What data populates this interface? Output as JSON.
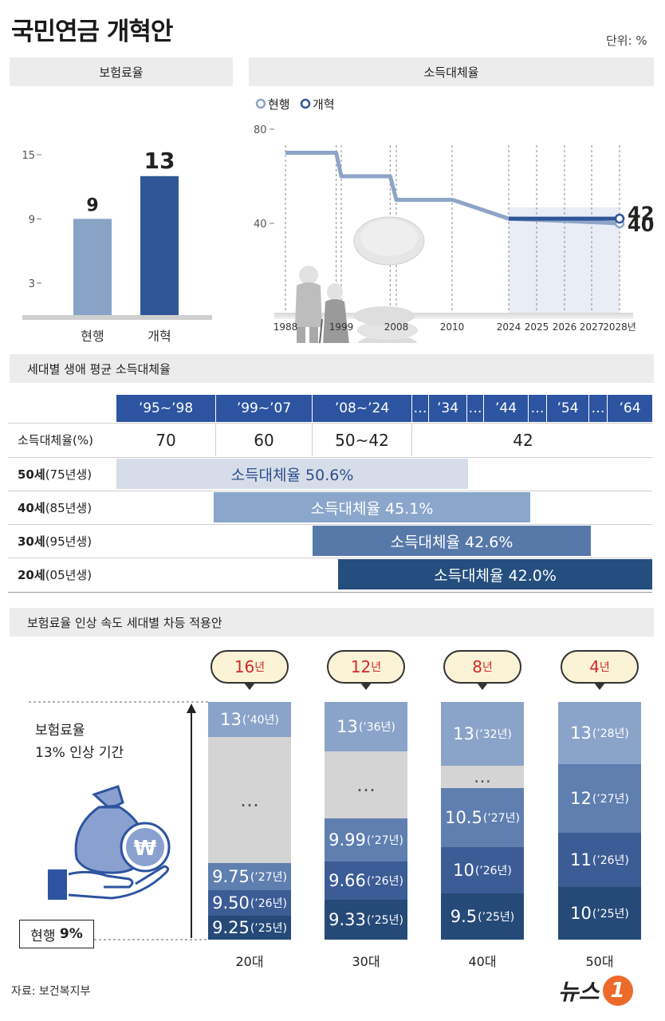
{
  "header": {
    "title": "국민연금 개혁안",
    "unit": "단위: %"
  },
  "sections": {
    "premium": "보험료율",
    "replacement": "소득대체율",
    "generation": "세대별 생애 평균 소득대체율",
    "differential": "보험료율 인상 속도 세대별 차등 적용안"
  },
  "chart_data": [
    {
      "type": "bar",
      "title": "보험료율",
      "categories": [
        "현행",
        "개혁"
      ],
      "values": [
        9,
        13
      ],
      "yticks": [
        3,
        9,
        15
      ],
      "colors": [
        "#89a3c6",
        "#2f5798"
      ]
    },
    {
      "type": "line",
      "title": "소득대체율",
      "legend": [
        "현행",
        "개혁"
      ],
      "x_labels": [
        "1988",
        "1999",
        "2008",
        "2010",
        "2024",
        "2025",
        "2026",
        "2027",
        "2028년"
      ],
      "yticks": [
        40,
        80
      ],
      "series": [
        {
          "name": "현행",
          "points": [
            [
              1988,
              70
            ],
            [
              1998,
              70
            ],
            [
              1999,
              60
            ],
            [
              2007,
              60
            ],
            [
              2008,
              50
            ],
            [
              2009,
              50
            ],
            [
              2010,
              50
            ],
            [
              2011,
              49.5
            ],
            [
              2024,
              42
            ],
            [
              2025,
              41.5
            ],
            [
              2026,
              41
            ],
            [
              2027,
              40.5
            ],
            [
              2028,
              40
            ]
          ],
          "end_label": "40"
        },
        {
          "name": "개혁",
          "points": [
            [
              2024,
              42
            ],
            [
              2025,
              42
            ],
            [
              2026,
              42
            ],
            [
              2027,
              42
            ],
            [
              2028,
              42
            ]
          ],
          "end_label": "42"
        }
      ]
    },
    {
      "type": "table",
      "title": "세대별 생애 평균 소득대체율",
      "periods": [
        "’95~’98",
        "’99~’07",
        "’08~’24",
        "…",
        "’34",
        "…",
        "’44",
        "…",
        "’54",
        "…",
        "’64"
      ],
      "row_label": "소득대체율(%)",
      "rates": [
        "70",
        "60",
        "50~42",
        "42"
      ],
      "generations": [
        {
          "label": "50세",
          "sub": "(75년생)",
          "bar": "소득대체율 50.6%"
        },
        {
          "label": "40세",
          "sub": "(85년생)",
          "bar": "소득대체율  45.1%"
        },
        {
          "label": "30세",
          "sub": "(95년생)",
          "bar": "소득대체율  42.6%"
        },
        {
          "label": "20세",
          "sub": "(05년생)",
          "bar": "소득대체율 42.0%"
        }
      ]
    },
    {
      "type": "bar",
      "title": "보험료율 인상 속도 세대별 차등 적용안",
      "axis_note": [
        "보험료율",
        "13% 인상 기간"
      ],
      "baseline": {
        "label": "현행",
        "value": "9%"
      },
      "columns": [
        {
          "label": "20대",
          "years": "16",
          "unit": "년",
          "segments": [
            [
              "9.25",
              "(’25년)"
            ],
            [
              "9.50",
              "(’26년)"
            ],
            [
              "9.75",
              "(’27년)"
            ],
            [
              "…",
              ""
            ],
            [
              "13",
              "(’40년)"
            ]
          ]
        },
        {
          "label": "30대",
          "years": "12",
          "unit": "년",
          "segments": [
            [
              "9.33",
              "(’25년)"
            ],
            [
              "9.66",
              "(’26년)"
            ],
            [
              "9.99",
              "(’27년)"
            ],
            [
              "…",
              ""
            ],
            [
              "13",
              "(’36년)"
            ]
          ]
        },
        {
          "label": "40대",
          "years": "8",
          "unit": "년",
          "segments": [
            [
              "9.5",
              "(’25년)"
            ],
            [
              "10",
              "(’26년)"
            ],
            [
              "10.5",
              "(’27년)"
            ],
            [
              "…",
              ""
            ],
            [
              "13",
              "(’32년)"
            ]
          ]
        },
        {
          "label": "50대",
          "years": "4",
          "unit": "년",
          "segments": [
            [
              "10",
              "(’25년)"
            ],
            [
              "11",
              "(’26년)"
            ],
            [
              "12",
              "(’27년)"
            ],
            [
              "13",
              "(’28년)"
            ]
          ]
        }
      ]
    }
  ],
  "footer": {
    "source": "자료: 보건복지부",
    "logo_text": "뉴스",
    "logo_mark": "1"
  }
}
